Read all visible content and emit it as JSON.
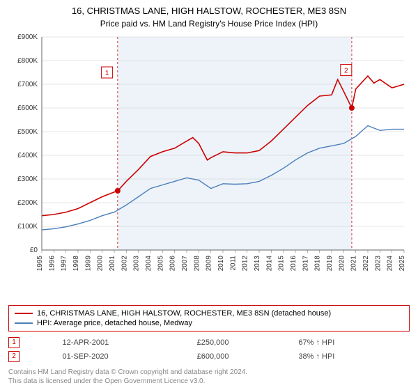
{
  "title": "16, CHRISTMAS LANE, HIGH HALSTOW, ROCHESTER, ME3 8SN",
  "subtitle": "Price paid vs. HM Land Registry's House Price Index (HPI)",
  "chart": {
    "type": "line",
    "background_color": "#ffffff",
    "shaded_band_color": "#edf3f9",
    "grid_color": "#cccccc",
    "title_fontsize": 13,
    "label_fontsize": 11,
    "tick_fontsize": 10,
    "axis_color": "#666666",
    "x_years": [
      1995,
      1996,
      1997,
      1998,
      1999,
      2000,
      2001,
      2002,
      2003,
      2004,
      2005,
      2006,
      2007,
      2008,
      2009,
      2010,
      2011,
      2012,
      2013,
      2014,
      2015,
      2016,
      2017,
      2018,
      2019,
      2020,
      2021,
      2022,
      2023,
      2024,
      2025
    ],
    "xlim": [
      1995,
      2025
    ],
    "ylim": [
      0,
      900000
    ],
    "ytick_step": 100000,
    "ytick_labels": [
      "£0",
      "£100K",
      "£200K",
      "£300K",
      "£400K",
      "£500K",
      "£600K",
      "£700K",
      "£800K",
      "£900K"
    ],
    "shaded_band": {
      "start_year": 2001.28,
      "end_year": 2020.67
    },
    "series": [
      {
        "name": "16, CHRISTMAS LANE, HIGH HALSTOW, ROCHESTER, ME3 8SN (detached house)",
        "color": "#cc0000",
        "line_width": 1.6,
        "points": [
          [
            1995,
            145000
          ],
          [
            1996,
            150000
          ],
          [
            1997,
            160000
          ],
          [
            1998,
            175000
          ],
          [
            1999,
            200000
          ],
          [
            2000,
            225000
          ],
          [
            2001,
            245000
          ],
          [
            2001.28,
            250000
          ],
          [
            2002,
            290000
          ],
          [
            2003,
            340000
          ],
          [
            2004,
            395000
          ],
          [
            2005,
            415000
          ],
          [
            2006,
            430000
          ],
          [
            2007,
            460000
          ],
          [
            2007.5,
            475000
          ],
          [
            2008,
            450000
          ],
          [
            2008.7,
            380000
          ],
          [
            2009,
            390000
          ],
          [
            2010,
            415000
          ],
          [
            2011,
            410000
          ],
          [
            2012,
            410000
          ],
          [
            2013,
            420000
          ],
          [
            2014,
            460000
          ],
          [
            2015,
            510000
          ],
          [
            2016,
            560000
          ],
          [
            2017,
            610000
          ],
          [
            2018,
            650000
          ],
          [
            2019,
            655000
          ],
          [
            2019.5,
            720000
          ],
          [
            2020,
            670000
          ],
          [
            2020.67,
            600000
          ],
          [
            2021,
            680000
          ],
          [
            2022,
            735000
          ],
          [
            2022.5,
            705000
          ],
          [
            2023,
            720000
          ],
          [
            2024,
            685000
          ],
          [
            2025,
            700000
          ]
        ]
      },
      {
        "name": "HPI: Average price, detached house, Medway",
        "color": "#4a7ebb",
        "line_width": 1.4,
        "points": [
          [
            1995,
            85000
          ],
          [
            1996,
            90000
          ],
          [
            1997,
            98000
          ],
          [
            1998,
            110000
          ],
          [
            1999,
            125000
          ],
          [
            2000,
            145000
          ],
          [
            2001,
            160000
          ],
          [
            2002,
            190000
          ],
          [
            2003,
            225000
          ],
          [
            2004,
            260000
          ],
          [
            2005,
            275000
          ],
          [
            2006,
            290000
          ],
          [
            2007,
            305000
          ],
          [
            2008,
            295000
          ],
          [
            2009,
            260000
          ],
          [
            2010,
            280000
          ],
          [
            2011,
            278000
          ],
          [
            2012,
            280000
          ],
          [
            2013,
            290000
          ],
          [
            2014,
            315000
          ],
          [
            2015,
            345000
          ],
          [
            2016,
            380000
          ],
          [
            2017,
            410000
          ],
          [
            2018,
            430000
          ],
          [
            2019,
            440000
          ],
          [
            2020,
            450000
          ],
          [
            2021,
            480000
          ],
          [
            2022,
            525000
          ],
          [
            2023,
            505000
          ],
          [
            2024,
            510000
          ],
          [
            2025,
            510000
          ]
        ]
      }
    ],
    "markers": [
      {
        "id": "1",
        "year": 2001.28,
        "price": 250000,
        "color": "#cc0000",
        "badge_offset_year": 2000.4,
        "badge_offset_price": 750000
      },
      {
        "id": "2",
        "year": 2020.67,
        "price": 600000,
        "color": "#cc0000",
        "badge_offset_year": 2020.2,
        "badge_offset_price": 760000
      }
    ]
  },
  "legend": {
    "items": [
      {
        "label": "16, CHRISTMAS LANE, HIGH HALSTOW, ROCHESTER, ME3 8SN (detached house)",
        "color": "#cc0000"
      },
      {
        "label": "HPI: Average price, detached house, Medway",
        "color": "#4a7ebb"
      }
    ]
  },
  "marker_table": [
    {
      "id": "1",
      "date": "12-APR-2001",
      "price": "£250,000",
      "hpi": "67% ↑ HPI"
    },
    {
      "id": "2",
      "date": "01-SEP-2020",
      "price": "£600,000",
      "hpi": "38% ↑ HPI"
    }
  ],
  "footer_line1": "Contains HM Land Registry data © Crown copyright and database right 2024.",
  "footer_line2": "This data is licensed under the Open Government Licence v3.0."
}
